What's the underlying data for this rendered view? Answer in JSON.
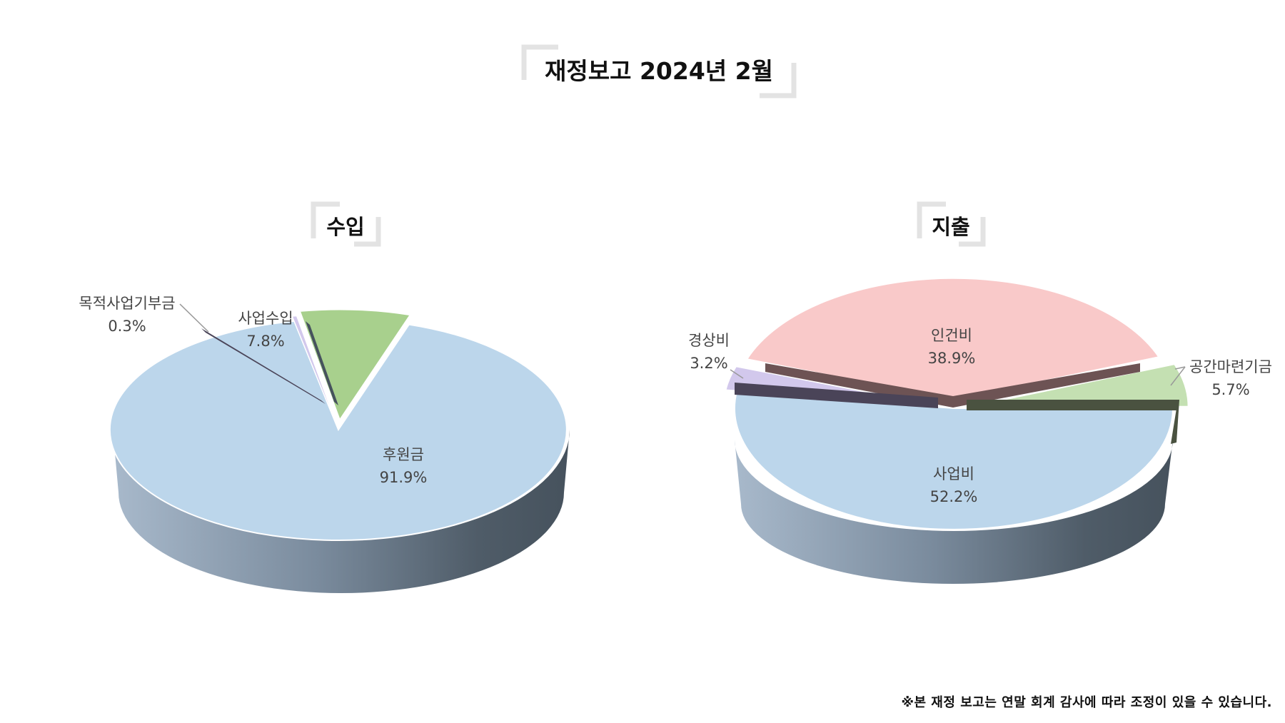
{
  "page": {
    "title": "재정보고 2024년 2월",
    "note": "※본 재정 보고는 연말 회계 감사에 따라 조정이 있을 수 있습니다."
  },
  "chart_data": [
    {
      "type": "pie",
      "title": "수입",
      "labels": [
        "후원금",
        "목적사업기부금",
        "사업수입"
      ],
      "values": [
        91.9,
        0.3,
        7.8
      ],
      "value_labels": [
        "91.9%",
        "0.3%",
        "7.8%"
      ],
      "colors": [
        "#bcd6eb",
        "#d2c8ec",
        "#a8d08d"
      ]
    },
    {
      "type": "pie",
      "title": "지출",
      "labels": [
        "사업비",
        "경상비",
        "인건비",
        "공간마련기금"
      ],
      "values": [
        52.2,
        3.2,
        38.9,
        5.7
      ],
      "value_labels": [
        "52.2%",
        "3.2%",
        "38.9%",
        "5.7%"
      ],
      "colors": [
        "#bcd6eb",
        "#d2c8ec",
        "#f9c9c9",
        "#c4e0b2"
      ]
    }
  ]
}
